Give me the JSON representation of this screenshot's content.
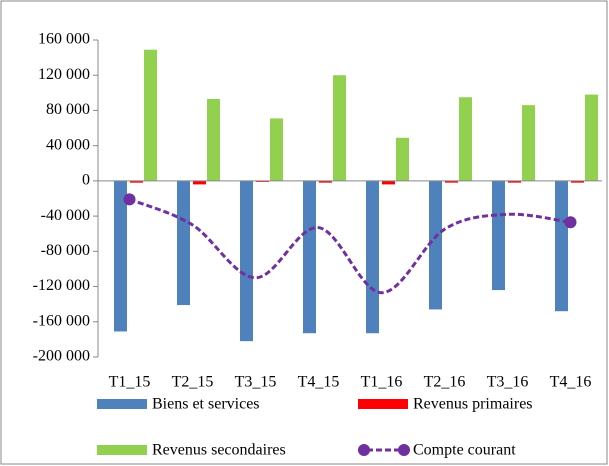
{
  "chart_data": {
    "type": "bar",
    "categories": [
      "T1_15",
      "T2_15",
      "T3_15",
      "T4_15",
      "T1_16",
      "T2_16",
      "T3_16",
      "T4_16"
    ],
    "series": [
      {
        "name": "Biens et services",
        "color": "#4f81bd",
        "values": [
          -171000,
          -141000,
          -182000,
          -173000,
          -173000,
          -146000,
          -124000,
          -148000
        ]
      },
      {
        "name": "Revenus primaires",
        "color": "#ff0000",
        "values": [
          -2000,
          -4000,
          -1000,
          -2000,
          -4000,
          -2000,
          -2000,
          -2000
        ]
      },
      {
        "name": "Revenus secondaires",
        "color": "#92d050",
        "values": [
          149000,
          93000,
          71000,
          120000,
          49000,
          95000,
          86000,
          98000
        ]
      },
      {
        "name": "Compte courant",
        "color": "#7030a0",
        "type": "line",
        "values": [
          -21000,
          -50000,
          -110000,
          -53000,
          -127000,
          -55000,
          -38000,
          -47000
        ]
      }
    ],
    "ylim": [
      -200000,
      160000
    ],
    "yticks": [
      {
        "value": -200000,
        "label": "-200 000"
      },
      {
        "value": -160000,
        "label": "-160 000"
      },
      {
        "value": -120000,
        "label": "-120 000"
      },
      {
        "value": -80000,
        "label": "-80 000"
      },
      {
        "value": -40000,
        "label": "-40 000"
      },
      0,
      {
        "value": 40000,
        "label": "40 000"
      },
      {
        "value": 80000,
        "label": "80 000"
      },
      {
        "value": 120000,
        "label": "120 000"
      },
      {
        "value": 160000,
        "label": "160 000"
      }
    ],
    "grid": false,
    "legend": "bottom"
  }
}
